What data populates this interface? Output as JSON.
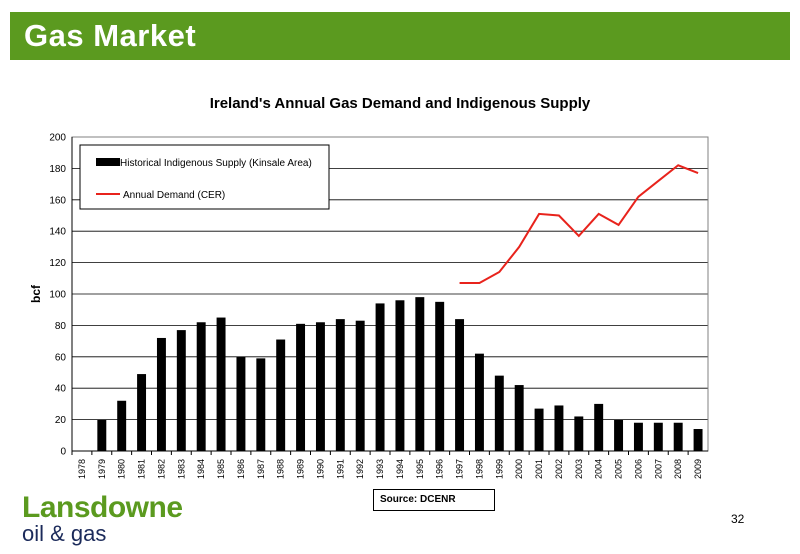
{
  "header": {
    "title": "Gas Market"
  },
  "source": "Source: DCENR",
  "logo": {
    "name": "Lansdowne",
    "sub": "oil & gas"
  },
  "page_number": "32",
  "colors": {
    "header": "#5b9a1f",
    "bar": "#000000",
    "demand_line": "#e8231c"
  },
  "chart_data": {
    "type": "bar",
    "title": "Ireland's Annual Gas Demand and Indigenous Supply",
    "xlabel": "",
    "ylabel": "bcf",
    "ylim": [
      0,
      200
    ],
    "yticks": [
      0,
      20,
      40,
      60,
      80,
      100,
      120,
      140,
      160,
      180,
      200
    ],
    "grid": true,
    "legend_position": "top-left",
    "categories": [
      "1978",
      "1979",
      "1980",
      "1981",
      "1982",
      "1983",
      "1984",
      "1985",
      "1986",
      "1987",
      "1988",
      "1989",
      "1990",
      "1991",
      "1992",
      "1993",
      "1994",
      "1995",
      "1996",
      "1997",
      "1998",
      "1999",
      "2000",
      "2001",
      "2002",
      "2003",
      "2004",
      "2005",
      "2006",
      "2007",
      "2008",
      "2009"
    ],
    "series": [
      {
        "name": "Historical Indigenous Supply (Kinsale Area)",
        "type": "bar",
        "values": [
          0,
          20,
          32,
          49,
          72,
          77,
          82,
          85,
          60,
          59,
          71,
          81,
          82,
          84,
          83,
          94,
          96,
          98,
          95,
          84,
          62,
          48,
          42,
          27,
          29,
          22,
          30,
          20,
          18,
          18,
          18,
          14
        ]
      },
      {
        "name": "Annual Demand (CER)",
        "type": "line",
        "values": [
          null,
          null,
          null,
          null,
          null,
          null,
          null,
          null,
          null,
          null,
          null,
          null,
          null,
          null,
          null,
          null,
          null,
          null,
          null,
          107,
          107,
          114,
          130,
          151,
          150,
          137,
          151,
          144,
          162,
          172,
          182,
          177
        ]
      }
    ]
  }
}
